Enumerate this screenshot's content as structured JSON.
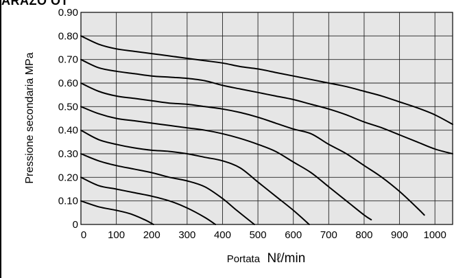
{
  "header": {
    "title_fragment": "ARAZO OT"
  },
  "chart_data": {
    "type": "line",
    "xlabel": "Portata Nℓ/min",
    "xlabel_main": "Portata",
    "xlabel_unit": "Nℓ/min",
    "ylabel": "Pressione secondaria MPa",
    "xlim": [
      0,
      1050
    ],
    "ylim": [
      0,
      0.9
    ],
    "grid": true,
    "plot_background": "#e6e6e6",
    "line_color": "#000000",
    "x_tick_labels": [
      "0",
      "100",
      "200",
      "300",
      "400",
      "500",
      "600",
      "700",
      "800",
      "900",
      "1000"
    ],
    "x_tick_values": [
      0,
      100,
      200,
      300,
      400,
      500,
      600,
      700,
      800,
      900,
      1000
    ],
    "y_tick_labels": [
      "0",
      "0.10",
      "0.20",
      "0.30",
      "0.40",
      "0.50",
      "0.60",
      "0.70",
      "0.80",
      "0.90"
    ],
    "y_tick_values": [
      0,
      0.1,
      0.2,
      0.3,
      0.4,
      0.5,
      0.6,
      0.7,
      0.8,
      0.9
    ],
    "series": [
      {
        "points": [
          [
            0,
            0.1
          ],
          [
            50,
            0.075
          ],
          [
            100,
            0.06
          ],
          [
            140,
            0.045
          ],
          [
            180,
            0.02
          ],
          [
            205,
            0.0
          ]
        ]
      },
      {
        "points": [
          [
            0,
            0.2
          ],
          [
            50,
            0.165
          ],
          [
            100,
            0.15
          ],
          [
            150,
            0.135
          ],
          [
            200,
            0.12
          ],
          [
            250,
            0.1
          ],
          [
            300,
            0.07
          ],
          [
            350,
            0.03
          ],
          [
            380,
            0.0
          ]
        ]
      },
      {
        "points": [
          [
            0,
            0.3
          ],
          [
            50,
            0.27
          ],
          [
            100,
            0.25
          ],
          [
            150,
            0.235
          ],
          [
            200,
            0.22
          ],
          [
            250,
            0.2
          ],
          [
            300,
            0.185
          ],
          [
            350,
            0.16
          ],
          [
            400,
            0.11
          ],
          [
            440,
            0.06
          ],
          [
            490,
            0.0
          ]
        ]
      },
      {
        "points": [
          [
            0,
            0.4
          ],
          [
            50,
            0.36
          ],
          [
            100,
            0.34
          ],
          [
            150,
            0.325
          ],
          [
            200,
            0.315
          ],
          [
            250,
            0.31
          ],
          [
            300,
            0.3
          ],
          [
            350,
            0.285
          ],
          [
            400,
            0.27
          ],
          [
            450,
            0.24
          ],
          [
            500,
            0.18
          ],
          [
            550,
            0.12
          ],
          [
            600,
            0.06
          ],
          [
            645,
            0.0
          ]
        ]
      },
      {
        "points": [
          [
            0,
            0.5
          ],
          [
            50,
            0.47
          ],
          [
            100,
            0.45
          ],
          [
            150,
            0.44
          ],
          [
            200,
            0.43
          ],
          [
            250,
            0.42
          ],
          [
            300,
            0.41
          ],
          [
            350,
            0.4
          ],
          [
            400,
            0.385
          ],
          [
            450,
            0.365
          ],
          [
            500,
            0.34
          ],
          [
            550,
            0.31
          ],
          [
            600,
            0.265
          ],
          [
            650,
            0.22
          ],
          [
            700,
            0.16
          ],
          [
            750,
            0.1
          ],
          [
            800,
            0.04
          ],
          [
            820,
            0.02
          ]
        ]
      },
      {
        "points": [
          [
            0,
            0.6
          ],
          [
            50,
            0.565
          ],
          [
            100,
            0.545
          ],
          [
            150,
            0.535
          ],
          [
            200,
            0.525
          ],
          [
            250,
            0.515
          ],
          [
            300,
            0.51
          ],
          [
            350,
            0.5
          ],
          [
            400,
            0.49
          ],
          [
            450,
            0.475
          ],
          [
            500,
            0.455
          ],
          [
            550,
            0.43
          ],
          [
            600,
            0.405
          ],
          [
            650,
            0.385
          ],
          [
            700,
            0.34
          ],
          [
            750,
            0.3
          ],
          [
            800,
            0.25
          ],
          [
            850,
            0.2
          ],
          [
            900,
            0.14
          ],
          [
            950,
            0.07
          ],
          [
            970,
            0.04
          ]
        ]
      },
      {
        "points": [
          [
            0,
            0.7
          ],
          [
            50,
            0.665
          ],
          [
            100,
            0.65
          ],
          [
            150,
            0.64
          ],
          [
            200,
            0.63
          ],
          [
            250,
            0.625
          ],
          [
            300,
            0.62
          ],
          [
            350,
            0.61
          ],
          [
            400,
            0.59
          ],
          [
            450,
            0.575
          ],
          [
            500,
            0.56
          ],
          [
            550,
            0.545
          ],
          [
            600,
            0.53
          ],
          [
            650,
            0.51
          ],
          [
            700,
            0.49
          ],
          [
            750,
            0.465
          ],
          [
            800,
            0.435
          ],
          [
            850,
            0.41
          ],
          [
            900,
            0.38
          ],
          [
            950,
            0.35
          ],
          [
            1000,
            0.32
          ],
          [
            1050,
            0.3
          ]
        ]
      },
      {
        "points": [
          [
            0,
            0.8
          ],
          [
            50,
            0.765
          ],
          [
            100,
            0.745
          ],
          [
            150,
            0.735
          ],
          [
            200,
            0.725
          ],
          [
            250,
            0.715
          ],
          [
            300,
            0.705
          ],
          [
            350,
            0.695
          ],
          [
            400,
            0.685
          ],
          [
            450,
            0.67
          ],
          [
            500,
            0.66
          ],
          [
            550,
            0.645
          ],
          [
            600,
            0.63
          ],
          [
            650,
            0.615
          ],
          [
            700,
            0.6
          ],
          [
            750,
            0.585
          ],
          [
            800,
            0.565
          ],
          [
            850,
            0.545
          ],
          [
            900,
            0.52
          ],
          [
            950,
            0.495
          ],
          [
            1000,
            0.465
          ],
          [
            1050,
            0.425
          ]
        ]
      }
    ]
  }
}
